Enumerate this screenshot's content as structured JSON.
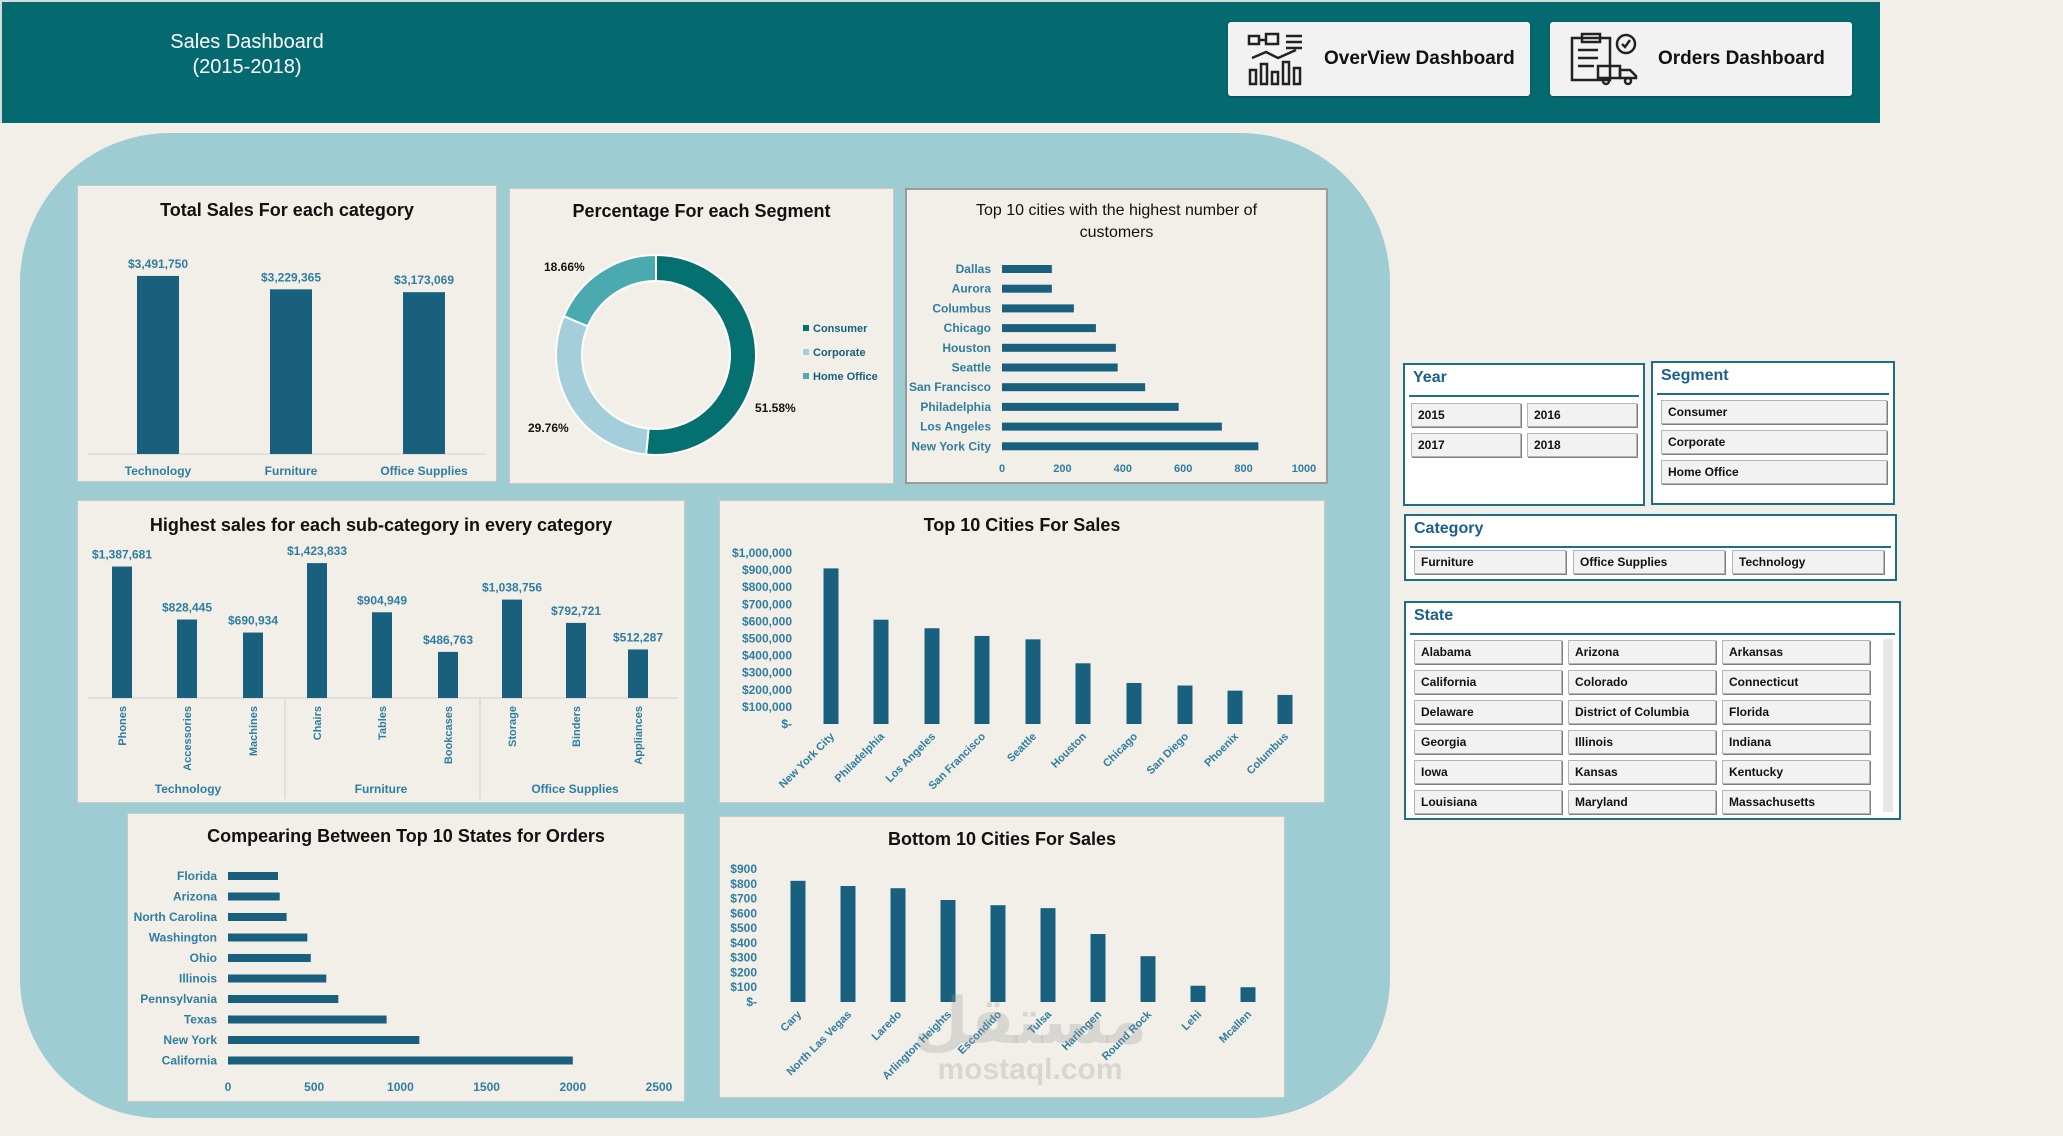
{
  "header": {
    "title_line1": "Sales Dashboard",
    "title_line2": "(2015-2018)",
    "overview_label": "OverView Dashboard",
    "orders_label": "Orders Dashboard"
  },
  "colors": {
    "bar": "#18607E",
    "header": "#046A70",
    "panel": "#9DCCD3",
    "label": "#2F7DA0",
    "consumer": "#04706F",
    "corporate": "#A4CEDA",
    "home_office": "#4AAAB0"
  },
  "charts": {
    "total_sales": {
      "title": "Total Sales For each category",
      "chart_data": {
        "type": "bar",
        "categories": [
          "Technology",
          "Furniture",
          "Office Supplies"
        ],
        "values": [
          3491750,
          3229365,
          3173069
        ],
        "labels": [
          "$3,491,750",
          "$3,229,365",
          "$3,173,069"
        ]
      }
    },
    "segment": {
      "title": "Percentage For each Segment",
      "chart_data": {
        "type": "pie",
        "categories": [
          "Consumer",
          "Corporate",
          "Home Office"
        ],
        "values": [
          51.58,
          29.76,
          18.66
        ],
        "labels": [
          "51.58%",
          "29.76%",
          "18.66%"
        ]
      }
    },
    "top_customers": {
      "title_line1": "Top 10 cities with the highest number of",
      "title_line2": "customers",
      "chart_data": {
        "type": "bar",
        "orientation": "horizontal",
        "categories": [
          "Dallas",
          "Aurora",
          "Columbus",
          "Chicago",
          "Houston",
          "Seattle",
          "San Francisco",
          "Philadelphia",
          "Los Angeles",
          "New York City"
        ],
        "values": [
          165,
          165,
          238,
          311,
          377,
          383,
          474,
          585,
          728,
          849
        ],
        "xlim": [
          0,
          1000
        ],
        "ticks": [
          "0",
          "200",
          "400",
          "600",
          "800",
          "1000"
        ]
      }
    },
    "subcategory": {
      "title": "Highest sales for each sub-category in every category",
      "chart_data": {
        "type": "bar",
        "categories": [
          "Phones",
          "Accessories",
          "Machines",
          "Chairs",
          "Tables",
          "Bookcases",
          "Storage",
          "Binders",
          "Appliances"
        ],
        "groups": [
          "Technology",
          "Furniture",
          "Office Supplies"
        ],
        "values": [
          1387681,
          828445,
          690934,
          1423833,
          904949,
          486763,
          1038756,
          792721,
          512287
        ],
        "labels": [
          "$1,387,681",
          "$828,445",
          "$690,934",
          "$1,423,833",
          "$904,949",
          "$486,763",
          "$1,038,756",
          "$792,721",
          "$512,287"
        ]
      }
    },
    "top_cities_sales": {
      "title": "Top 10 Cities For Sales",
      "chart_data": {
        "type": "bar",
        "categories": [
          "New York City",
          "Philadelphia",
          "Los Angeles",
          "San Francisco",
          "Seattle",
          "Houston",
          "Chicago",
          "San Diego",
          "Phoenix",
          "Columbus"
        ],
        "values": [
          910000,
          610000,
          560000,
          515000,
          495000,
          355000,
          240000,
          225000,
          195000,
          170000
        ],
        "ylim": [
          0,
          1000000
        ],
        "ticks": [
          "$-",
          "$100,000",
          "$200,000",
          "$300,000",
          "$400,000",
          "$500,000",
          "$600,000",
          "$700,000",
          "$800,000",
          "$900,000",
          "$1,000,000"
        ]
      }
    },
    "top_states": {
      "title": "Compearing Between Top 10 States for Orders",
      "chart_data": {
        "type": "bar",
        "orientation": "horizontal",
        "categories": [
          "Florida",
          "Arizona",
          "North Carolina",
          "Washington",
          "Ohio",
          "Illinois",
          "Pennsylvania",
          "Texas",
          "New York",
          "California"
        ],
        "values": [
          290,
          300,
          340,
          460,
          480,
          570,
          640,
          920,
          1110,
          2000
        ],
        "xlim": [
          0,
          2500
        ],
        "ticks": [
          "0",
          "500",
          "1000",
          "1500",
          "2000",
          "2500"
        ]
      }
    },
    "bottom_cities": {
      "title": "Bottom 10 Cities For Sales",
      "chart_data": {
        "type": "bar",
        "categories": [
          "Cary",
          "North Las Vegas",
          "Laredo",
          "Arlington Heights",
          "Escondido",
          "Tulsa",
          "Harlingen",
          "Round Rock",
          "Lehi",
          "Mcallen"
        ],
        "values": [
          820,
          785,
          770,
          690,
          655,
          635,
          460,
          310,
          110,
          100
        ],
        "ylim": [
          0,
          900
        ],
        "ticks": [
          "$-",
          "$100",
          "$200",
          "$300",
          "$400",
          "$500",
          "$600",
          "$700",
          "$800",
          "$900"
        ]
      }
    }
  },
  "slicers": {
    "year": {
      "title": "Year",
      "items": [
        "2015",
        "2016",
        "2017",
        "2018"
      ]
    },
    "segment": {
      "title": "Segment",
      "items": [
        "Consumer",
        "Corporate",
        "Home Office"
      ]
    },
    "category": {
      "title": "Category",
      "items": [
        "Furniture",
        "Office Supplies",
        "Technology"
      ]
    },
    "state": {
      "title": "State",
      "items": [
        "Alabama",
        "Arizona",
        "Arkansas",
        "California",
        "Colorado",
        "Connecticut",
        "Delaware",
        "District of Columbia",
        "Florida",
        "Georgia",
        "Illinois",
        "Indiana",
        "Iowa",
        "Kansas",
        "Kentucky",
        "Louisiana",
        "Maryland",
        "Massachusetts"
      ]
    }
  },
  "watermark": {
    "arabic": "مستقل",
    "latin": "mostaql.com"
  }
}
